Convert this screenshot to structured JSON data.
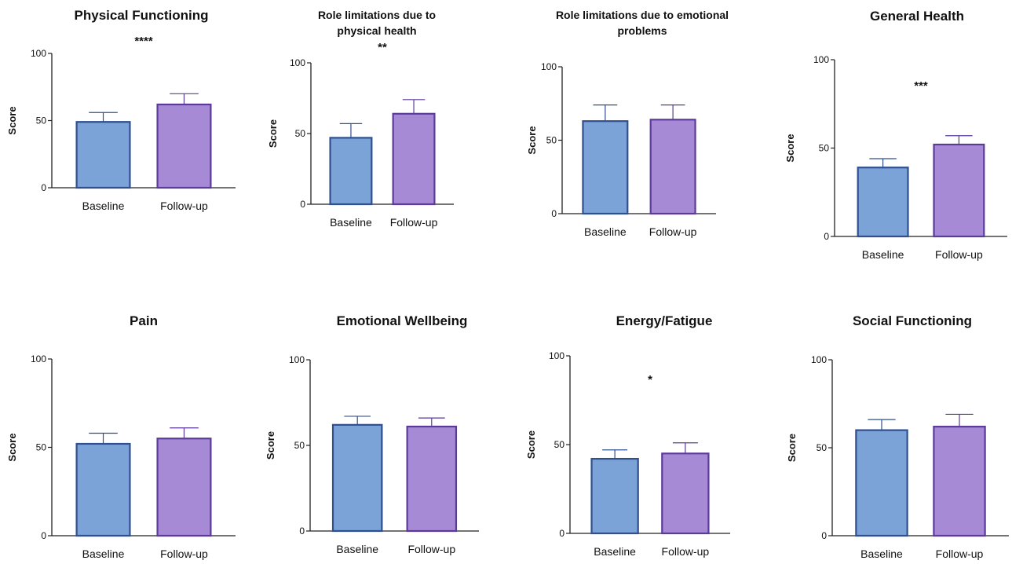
{
  "chart_data": [
    {
      "type": "bar",
      "title": "Physical Functioning",
      "title_lines": [
        "Physical Functioning"
      ],
      "ylabel": "Score",
      "categories": [
        "Baseline",
        "Follow-up"
      ],
      "values": [
        49,
        62
      ],
      "error_upper": [
        56,
        70
      ],
      "ylim": [
        0,
        100
      ],
      "yticks": [
        "0",
        "50",
        "100"
      ],
      "significance": "****",
      "colors": [
        "#7ba3d8",
        "#a78ad6"
      ],
      "edge_colors": [
        "#2f4f8f",
        "#5b3a9a"
      ]
    },
    {
      "type": "bar",
      "title": "Role limitations due to physical health",
      "title_lines": [
        "Role limitations due to",
        "physical health"
      ],
      "ylabel": "Score",
      "categories": [
        "Baseline",
        "Follow-up"
      ],
      "values": [
        47,
        64
      ],
      "error_upper": [
        57,
        74
      ],
      "ylim": [
        0,
        100
      ],
      "yticks": [
        "0",
        "50",
        "100"
      ],
      "significance": "**",
      "colors": [
        "#7ba3d8",
        "#a78ad6"
      ],
      "edge_colors": [
        "#2f4f8f",
        "#5b3a9a"
      ]
    },
    {
      "type": "bar",
      "title": "Role limitations due to emotional problems",
      "title_lines": [
        "Role limitations due to emotional",
        "problems"
      ],
      "ylabel": "Score",
      "categories": [
        "Baseline",
        "Follow-up"
      ],
      "values": [
        63,
        64
      ],
      "error_upper": [
        74,
        74
      ],
      "ylim": [
        0,
        100
      ],
      "yticks": [
        "0",
        "50",
        "100"
      ],
      "significance": "",
      "colors": [
        "#7ba3d8",
        "#a78ad6"
      ],
      "edge_colors": [
        "#2f4f8f",
        "#5b3a9a"
      ]
    },
    {
      "type": "bar",
      "title": "General Health",
      "title_lines": [
        "General Health"
      ],
      "ylabel": "Score",
      "categories": [
        "Baseline",
        "Follow-up"
      ],
      "values": [
        39,
        52
      ],
      "error_upper": [
        44,
        57
      ],
      "ylim": [
        0,
        100
      ],
      "yticks": [
        "0",
        "50",
        "100"
      ],
      "significance": "***",
      "colors": [
        "#7ba3d8",
        "#a78ad6"
      ],
      "edge_colors": [
        "#2f4f8f",
        "#5b3a9a"
      ]
    },
    {
      "type": "bar",
      "title": "Pain",
      "title_lines": [
        "Pain"
      ],
      "ylabel": "Score",
      "categories": [
        "Baseline",
        "Follow-up"
      ],
      "values": [
        52,
        55
      ],
      "error_upper": [
        58,
        61
      ],
      "ylim": [
        0,
        100
      ],
      "yticks": [
        "0",
        "50",
        "100"
      ],
      "significance": "",
      "colors": [
        "#7ba3d8",
        "#a78ad6"
      ],
      "edge_colors": [
        "#2f4f8f",
        "#5b3a9a"
      ]
    },
    {
      "type": "bar",
      "title": "Emotional Wellbeing",
      "title_lines": [
        "Emotional Wellbeing"
      ],
      "ylabel": "Score",
      "categories": [
        "Baseline",
        "Follow-up"
      ],
      "values": [
        62,
        61
      ],
      "error_upper": [
        67,
        66
      ],
      "ylim": [
        0,
        100
      ],
      "yticks": [
        "0",
        "50",
        "100"
      ],
      "significance": "",
      "colors": [
        "#7ba3d8",
        "#a78ad6"
      ],
      "edge_colors": [
        "#2f4f8f",
        "#5b3a9a"
      ]
    },
    {
      "type": "bar",
      "title": "Energy/Fatigue",
      "title_lines": [
        "Energy/Fatigue"
      ],
      "ylabel": "Score",
      "categories": [
        "Baseline",
        "Follow-up"
      ],
      "values": [
        42,
        45
      ],
      "error_upper": [
        47,
        51
      ],
      "ylim": [
        0,
        100
      ],
      "yticks": [
        "0",
        "50",
        "100"
      ],
      "significance": "*",
      "colors": [
        "#7ba3d8",
        "#a78ad6"
      ],
      "edge_colors": [
        "#2f4f8f",
        "#5b3a9a"
      ]
    },
    {
      "type": "bar",
      "title": "Social Functioning",
      "title_lines": [
        "Social Functioning"
      ],
      "ylabel": "Score",
      "categories": [
        "Baseline",
        "Follow-up"
      ],
      "values": [
        60,
        62
      ],
      "error_upper": [
        66,
        69
      ],
      "ylim": [
        0,
        100
      ],
      "yticks": [
        "0",
        "50",
        "100"
      ],
      "significance": "",
      "colors": [
        "#7ba3d8",
        "#a78ad6"
      ],
      "edge_colors": [
        "#2f4f8f",
        "#5b3a9a"
      ]
    }
  ]
}
